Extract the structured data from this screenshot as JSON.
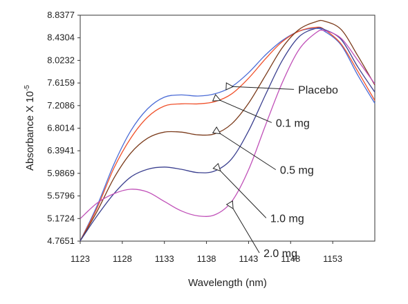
{
  "chart_data": {
    "type": "line",
    "xlabel": "Wavelength (nm)",
    "ylabel": "Absorbance X 10",
    "ylabel_exponent": "-5",
    "xlim": [
      1123,
      1158
    ],
    "ylim": [
      4.7651,
      8.8377
    ],
    "xticks": [
      1123,
      1128,
      1133,
      1138,
      1143,
      1148,
      1153
    ],
    "yticks": [
      "4.7651",
      "5.1724",
      "5.5796",
      "5.9869",
      "6.3941",
      "6.8014",
      "7.2086",
      "7.6159",
      "8.0232",
      "8.4304",
      "8.8377"
    ],
    "grid": false,
    "series": [
      {
        "name": "Placebo",
        "color": "#4a6bd6",
        "points": [
          [
            1123,
            4.77
          ],
          [
            1125,
            5.4
          ],
          [
            1127,
            6.15
          ],
          [
            1129,
            6.75
          ],
          [
            1131,
            7.15
          ],
          [
            1133,
            7.36
          ],
          [
            1135,
            7.4
          ],
          [
            1137,
            7.38
          ],
          [
            1139,
            7.42
          ],
          [
            1141,
            7.55
          ],
          [
            1143,
            7.8
          ],
          [
            1145,
            8.12
          ],
          [
            1147,
            8.38
          ],
          [
            1149,
            8.55
          ],
          [
            1151,
            8.6
          ],
          [
            1152,
            8.55
          ],
          [
            1154,
            8.3
          ],
          [
            1156,
            7.75
          ],
          [
            1158,
            7.25
          ]
        ]
      },
      {
        "name": "0.1 mg",
        "color": "#f0502a",
        "points": [
          [
            1123,
            4.77
          ],
          [
            1125,
            5.36
          ],
          [
            1127,
            6.08
          ],
          [
            1129,
            6.62
          ],
          [
            1131,
            7.0
          ],
          [
            1133,
            7.2
          ],
          [
            1135,
            7.24
          ],
          [
            1137,
            7.24
          ],
          [
            1139,
            7.28
          ],
          [
            1141,
            7.42
          ],
          [
            1143,
            7.7
          ],
          [
            1145,
            8.05
          ],
          [
            1147,
            8.36
          ],
          [
            1149,
            8.55
          ],
          [
            1151,
            8.62
          ],
          [
            1152,
            8.58
          ],
          [
            1154,
            8.32
          ],
          [
            1156,
            7.82
          ],
          [
            1158,
            7.3
          ]
        ]
      },
      {
        "name": "0.5 mg",
        "color": "#7a3a1a",
        "points": [
          [
            1123,
            4.77
          ],
          [
            1125,
            5.3
          ],
          [
            1127,
            5.9
          ],
          [
            1129,
            6.35
          ],
          [
            1131,
            6.62
          ],
          [
            1133,
            6.73
          ],
          [
            1135,
            6.73
          ],
          [
            1137,
            6.68
          ],
          [
            1139,
            6.7
          ],
          [
            1141,
            6.88
          ],
          [
            1143,
            7.25
          ],
          [
            1145,
            7.75
          ],
          [
            1147,
            8.25
          ],
          [
            1149,
            8.58
          ],
          [
            1151,
            8.72
          ],
          [
            1152,
            8.73
          ],
          [
            1154,
            8.58
          ],
          [
            1156,
            8.1
          ],
          [
            1158,
            7.58
          ]
        ]
      },
      {
        "name": "1.0 mg",
        "color": "#3a3f8f",
        "points": [
          [
            1123,
            4.77
          ],
          [
            1125,
            5.22
          ],
          [
            1127,
            5.62
          ],
          [
            1129,
            5.92
          ],
          [
            1131,
            6.06
          ],
          [
            1133,
            6.1
          ],
          [
            1135,
            6.06
          ],
          [
            1137,
            6.0
          ],
          [
            1139,
            6.03
          ],
          [
            1141,
            6.25
          ],
          [
            1143,
            6.75
          ],
          [
            1145,
            7.4
          ],
          [
            1147,
            8.02
          ],
          [
            1149,
            8.45
          ],
          [
            1151,
            8.6
          ],
          [
            1152,
            8.58
          ],
          [
            1154,
            8.4
          ],
          [
            1156,
            7.9
          ],
          [
            1158,
            7.45
          ]
        ]
      },
      {
        "name": "2.0 mg",
        "color": "#c050b8",
        "points": [
          [
            1123,
            5.17
          ],
          [
            1125,
            5.45
          ],
          [
            1127,
            5.62
          ],
          [
            1129,
            5.7
          ],
          [
            1131,
            5.65
          ],
          [
            1133,
            5.48
          ],
          [
            1135,
            5.31
          ],
          [
            1137,
            5.22
          ],
          [
            1139,
            5.24
          ],
          [
            1141,
            5.48
          ],
          [
            1143,
            6.05
          ],
          [
            1145,
            6.85
          ],
          [
            1147,
            7.62
          ],
          [
            1149,
            8.22
          ],
          [
            1151,
            8.52
          ],
          [
            1152,
            8.56
          ],
          [
            1154,
            8.42
          ],
          [
            1156,
            8.02
          ],
          [
            1158,
            7.6
          ]
        ]
      }
    ],
    "annotations": [
      {
        "text": "Placebo",
        "target": [
          1141.0,
          7.55
        ]
      },
      {
        "text": "0.1 mg",
        "target": [
          1139.5,
          7.3
        ]
      },
      {
        "text": "0.5 mg",
        "target": [
          1139.5,
          6.7
        ]
      },
      {
        "text": "1.0 mg",
        "target": [
          1139.5,
          6.03
        ]
      },
      {
        "text": "2.0 mg",
        "target": [
          1141.0,
          5.35
        ]
      }
    ]
  }
}
